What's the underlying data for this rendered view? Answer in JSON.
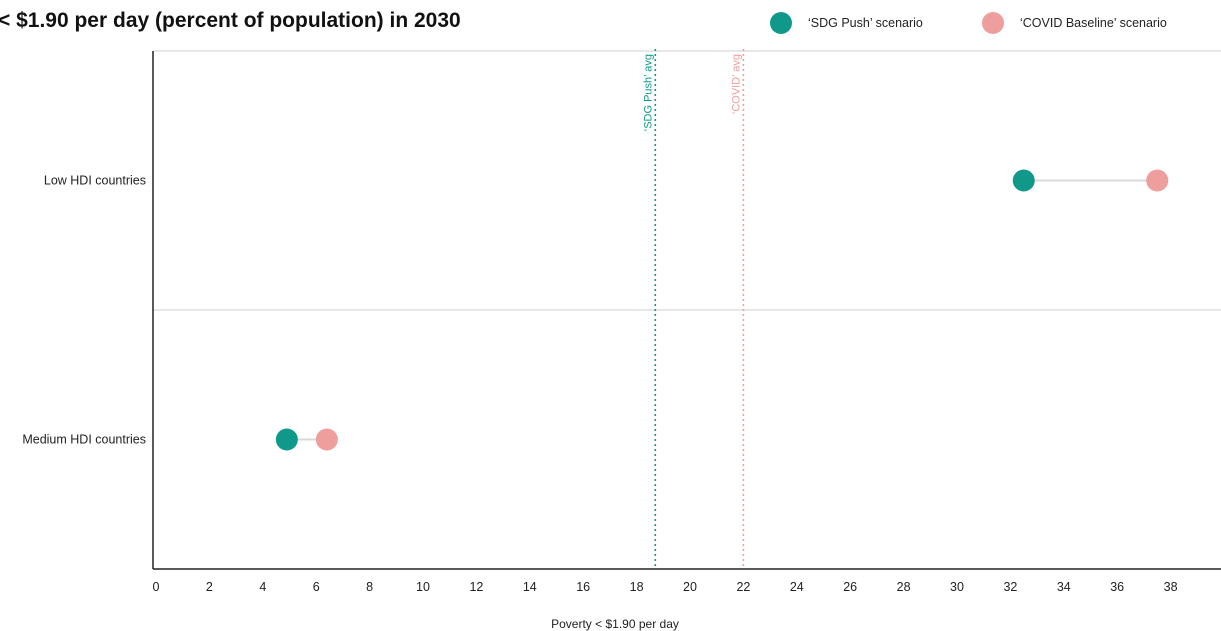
{
  "title": "< $1.90 per day (percent of population) in 2030",
  "colors": {
    "sdg": "#10998a",
    "covid": "#ee9e9c",
    "connector": "#d9d9d9",
    "axis": "#222222",
    "divider": "#cfcfcf"
  },
  "legend": [
    {
      "label": "‘SDG Push’ scenario",
      "color": "#10998a"
    },
    {
      "label": "‘COVID Baseline’ scenario",
      "color": "#ee9e9c"
    }
  ],
  "chart_data": {
    "type": "dumbbell",
    "xlabel": "Poverty < $1.90 per day",
    "xlim": [
      0,
      40
    ],
    "xticks": [
      0,
      2,
      4,
      6,
      8,
      10,
      12,
      14,
      16,
      18,
      20,
      22,
      24,
      26,
      28,
      30,
      32,
      34,
      36,
      38
    ],
    "categories": [
      "Low HDI countries",
      "Medium HDI countries"
    ],
    "series": [
      {
        "name": "‘SDG Push’ scenario",
        "color": "#10998a",
        "values": [
          32.5,
          4.9
        ]
      },
      {
        "name": "‘COVID Baseline’ scenario",
        "color": "#ee9e9c",
        "values": [
          37.5,
          6.4
        ]
      }
    ],
    "reference_lines": [
      {
        "label": "‘SDG Push’ avg",
        "value": 18.7,
        "color": "#10998a"
      },
      {
        "label": "‘COVID’ avg",
        "value": 22.0,
        "color": "#ee9e9c"
      }
    ]
  }
}
